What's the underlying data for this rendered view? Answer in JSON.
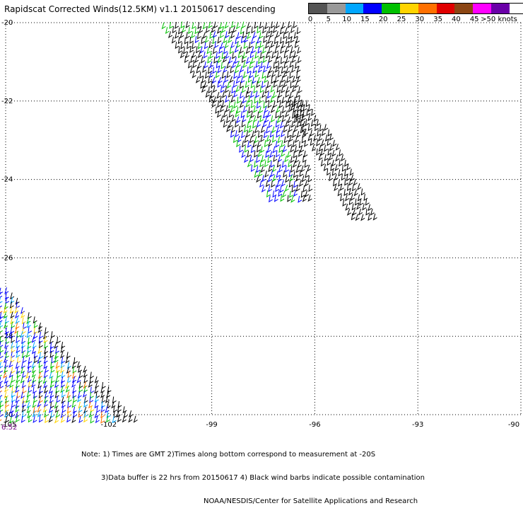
{
  "title": "Rapidscat Corrected Winds(12.5KM) v1.1 20150617 descending",
  "legend": {
    "labels": [
      "0",
      "5",
      "10",
      "15",
      "20",
      "25",
      "30",
      "35",
      "40",
      "45",
      ">50 knots"
    ],
    "colors": [
      "#555555",
      "#999999",
      "#00a6ff",
      "#0000ff",
      "#00c000",
      "#ffd400",
      "#ff7000",
      "#e00000",
      "#8b4513",
      "#ff00ff",
      "#6a00a8"
    ]
  },
  "map": {
    "lat_labels": [
      "-20",
      "-22",
      "-24",
      "-26",
      "-28",
      "-30"
    ],
    "lon_labels": [
      "-105",
      "-102",
      "-99",
      "-96",
      "-93",
      "-90"
    ],
    "gridline_style": "dotted"
  },
  "time_label": "6:52",
  "notes": [
    "Note: 1) Times are GMT 2)Times along bottom correspond to measurement at -20S",
    "3)Data buffer is 22 hrs from 20150617 4) Black wind barbs indicate possible contamination",
    "NOAA/NESDIS/Center for Satellite Applications and Research"
  ]
}
